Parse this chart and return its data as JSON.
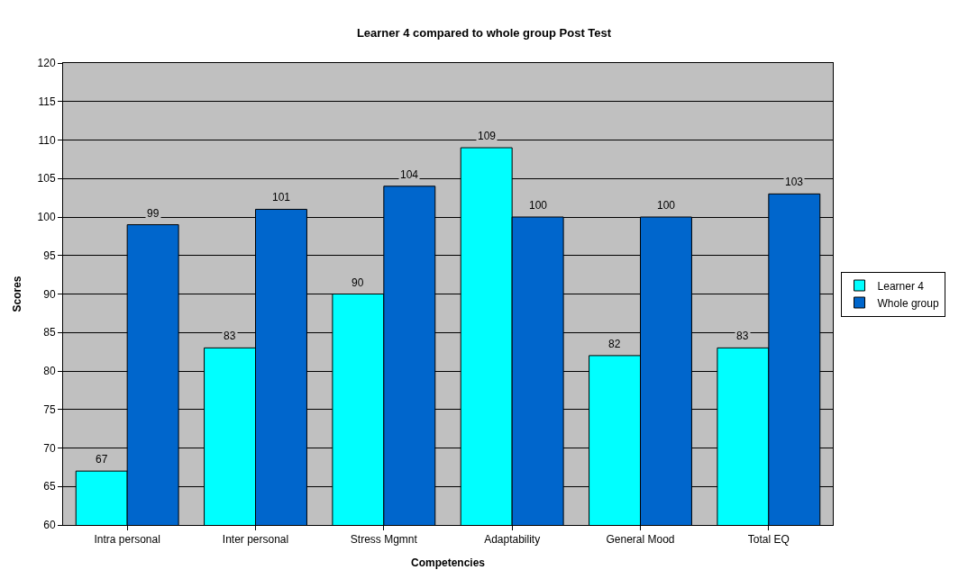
{
  "chart_data": {
    "type": "bar",
    "title": "Learner 4 compared to whole group Post Test",
    "xlabel": "Competencies",
    "ylabel": "Scores",
    "categories": [
      "Intra personal",
      "Inter personal",
      "Stress Mgmnt",
      "Adaptability",
      "General Mood",
      "Total EQ"
    ],
    "series": [
      {
        "name": "Learner 4",
        "color": "#00ffff",
        "values": [
          67,
          83,
          90,
          109,
          82,
          83
        ]
      },
      {
        "name": "Whole group",
        "color": "#0066cc",
        "values": [
          99,
          101,
          104,
          100,
          100,
          103
        ]
      }
    ],
    "ylim": [
      60,
      120
    ],
    "yticks": [
      60,
      65,
      70,
      75,
      80,
      85,
      90,
      95,
      100,
      105,
      110,
      115,
      120
    ],
    "grid": "y",
    "legend": "right",
    "data_labels": true
  }
}
